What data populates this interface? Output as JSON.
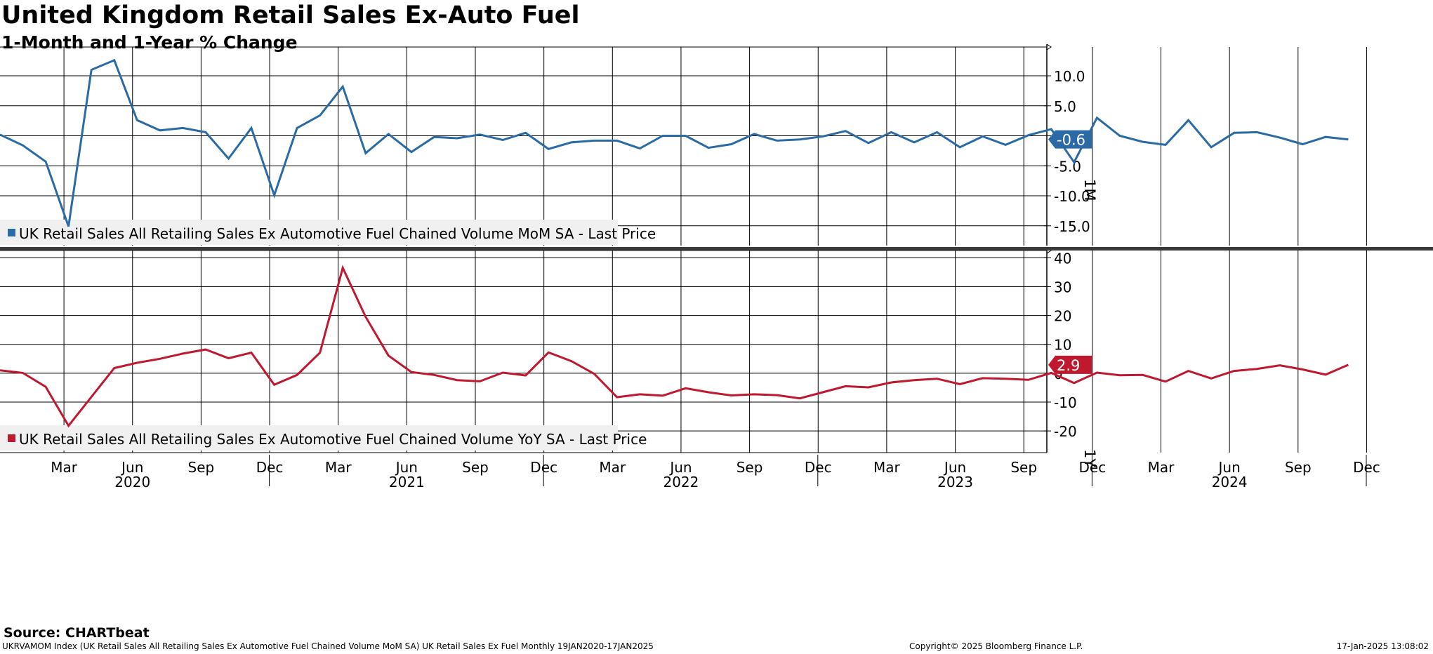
{
  "title": "United Kingdom Retail Sales Ex-Auto Fuel",
  "subtitle": "1-Month and 1-Year % Change",
  "source": "Source: CHARTbeat",
  "footer": {
    "left": "UKRVAMOM Index (UK Retail Sales All Retailing Sales Ex Automotive Fuel Chained Volume MoM SA) UK Retail Sales Ex Fuel  Monthly 19JAN2020-17JAN2025",
    "middle": "Copyright© 2025 Bloomberg Finance L.P.",
    "right": "17-Jan-2025 13:08:02"
  },
  "colors": {
    "mom": "#2a6aa6",
    "yoy": "#c0182e",
    "grid": "#000000",
    "legend_bg": "#f0f0f0"
  },
  "chart_data": [
    {
      "type": "line",
      "panel_label": "1M",
      "legend": "UK Retail Sales All Retailing Sales Ex Automotive Fuel Chained Volume MoM SA - Last Price",
      "legend_position": "bottom-left",
      "last_value_label": "-0.6",
      "ylim": [
        -18.3,
        14.8
      ],
      "yticks": [
        10.0,
        5.0,
        0.0,
        -5.0,
        -10.0,
        -15.0
      ],
      "ytick_labels": [
        "10.0",
        "5.0",
        "0.0",
        "-5.0",
        "-10.0",
        "-15.0"
      ],
      "grid": true,
      "x_start": "Jan 2020",
      "x_end": "Dec 2024",
      "frequency": "monthly",
      "series": [
        {
          "name": "UK Retail Sales All Retailing Sales Ex Automotive Fuel Chained Volume MoM SA",
          "values": [
            0.2,
            -1.6,
            -4.3,
            -15.1,
            11.0,
            12.6,
            2.6,
            0.9,
            1.3,
            0.6,
            -3.8,
            1.3,
            -9.9,
            1.3,
            3.4,
            8.2,
            -2.9,
            0.3,
            -2.7,
            -0.2,
            -0.4,
            0.2,
            -0.7,
            0.5,
            -2.2,
            -1.1,
            -0.8,
            -0.8,
            -2.1,
            0.0,
            0.0,
            -2.0,
            -1.4,
            0.3,
            -0.8,
            -0.6,
            -0.1,
            0.8,
            -1.2,
            0.6,
            -1.1,
            0.6,
            -1.9,
            -0.1,
            -1.5,
            0.1,
            1.1,
            -4.4,
            3.0,
            -0.0,
            -1.0,
            -1.5,
            2.6,
            -1.9,
            0.5,
            0.6,
            -0.3,
            -1.4,
            -0.2,
            -0.6
          ]
        }
      ]
    },
    {
      "type": "line",
      "panel_label": "1Y",
      "legend": "UK Retail Sales All Retailing Sales Ex Automotive Fuel Chained Volume YoY SA - Last Price",
      "legend_position": "bottom-left",
      "last_value_label": "2.9",
      "ylim": [
        -27.5,
        42.5
      ],
      "yticks": [
        40,
        30,
        20,
        10,
        0,
        -10,
        -20
      ],
      "ytick_labels": [
        "40",
        "30",
        "20",
        "10",
        "0",
        "-10",
        "-20"
      ],
      "grid": true,
      "x_start": "Jan 2020",
      "x_end": "Dec 2024",
      "frequency": "monthly",
      "series": [
        {
          "name": "UK Retail Sales All Retailing Sales Ex Automotive Fuel Chained Volume YoY SA",
          "values": [
            1.0,
            0.1,
            -4.7,
            -18.2,
            -8.2,
            1.8,
            3.6,
            5.0,
            6.8,
            8.2,
            5.2,
            7.1,
            -4.0,
            -0.6,
            7.1,
            36.5,
            19.5,
            6.1,
            0.4,
            -0.6,
            -2.4,
            -2.8,
            0.2,
            -0.8,
            7.2,
            4.2,
            -0.2,
            -8.3,
            -7.3,
            -7.8,
            -5.2,
            -6.6,
            -7.7,
            -7.3,
            -7.6,
            -8.7,
            -6.6,
            -4.5,
            -4.9,
            -3.2,
            -2.4,
            -1.9,
            -3.8,
            -1.7,
            -1.9,
            -2.3,
            0.1,
            -3.4,
            0.2,
            -0.7,
            -0.6,
            -2.9,
            0.8,
            -1.8,
            0.8,
            1.5,
            2.7,
            1.3,
            -0.5,
            2.9
          ]
        }
      ]
    }
  ],
  "x_axis": {
    "month_labels": [
      "Mar",
      "Jun",
      "Sep",
      "Dec",
      "Mar",
      "Jun",
      "Sep",
      "Dec",
      "Mar",
      "Jun",
      "Sep",
      "Dec",
      "Mar",
      "Jun",
      "Sep",
      "Dec",
      "Mar",
      "Jun",
      "Sep",
      "Dec"
    ],
    "month_label_indices": [
      2,
      5,
      8,
      11,
      14,
      17,
      20,
      23,
      26,
      29,
      32,
      35,
      38,
      41,
      44,
      47,
      50,
      53,
      56,
      59
    ],
    "year_labels": [
      "2020",
      "2021",
      "2022",
      "2023",
      "2024"
    ],
    "year_label_indices": [
      5,
      17,
      29,
      41,
      53
    ]
  }
}
